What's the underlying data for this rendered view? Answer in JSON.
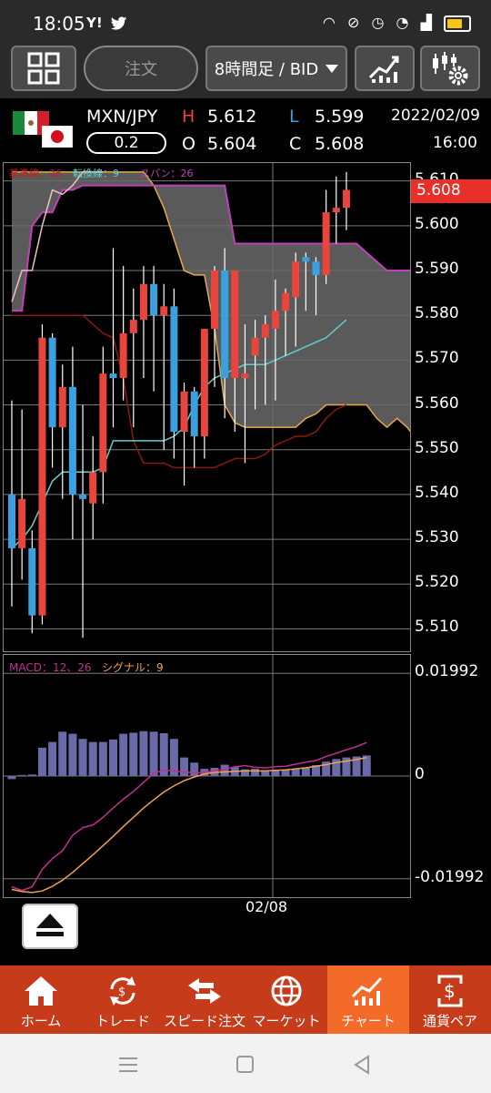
{
  "status_bar": {
    "time": "18:05",
    "left_icons": [
      "yahoo-icon",
      "twitter-icon"
    ],
    "right_icons": [
      "headphones-icon",
      "mute-icon",
      "alarm-icon",
      "wifi-icon",
      "signal-icon",
      "battery-icon"
    ],
    "battery_color": "#f5c518"
  },
  "toolbar": {
    "order_label": "注文",
    "timeframe_label": "8時間足 / BID"
  },
  "quote": {
    "pair": "MXN/JPY",
    "spread": "0.2",
    "high_label": "H",
    "high": "5.612",
    "low_label": "L",
    "low": "5.599",
    "open_label": "O",
    "open": "5.604",
    "close_label": "C",
    "close": "5.608",
    "date": "2022/02/09",
    "time": "16:00"
  },
  "main_chart": {
    "indicator_label_1": "基準線：26",
    "indicator_label_2": "転換線：9",
    "indicator_label_3": "スパン：26",
    "current_price": "5.608",
    "y_ticks": [
      "5.610",
      "5.600",
      "5.590",
      "5.580",
      "5.570",
      "5.560",
      "5.550",
      "5.540",
      "5.530",
      "5.520",
      "5.510"
    ],
    "x_date_label": "02/08"
  },
  "macd": {
    "label": "MACD：12、26",
    "signal_label": "シグナル：9",
    "y_ticks": [
      "0.01992",
      "0",
      "-0.01992"
    ]
  },
  "bottom_nav": [
    {
      "label": "ホーム",
      "icon": "home-icon"
    },
    {
      "label": "トレード",
      "icon": "trade-icon"
    },
    {
      "label": "スピード注文",
      "icon": "speed-order-icon"
    },
    {
      "label": "マーケット",
      "icon": "globe-icon"
    },
    {
      "label": "チャート",
      "icon": "chart-icon",
      "active": true
    },
    {
      "label": "通貨ペア",
      "icon": "currency-pair-icon"
    }
  ],
  "colors": {
    "up": "#e8453c",
    "down": "#3aa0e0",
    "kijun": "#8b1a10",
    "tenkan": "#5fd0d0",
    "span_a": "#e8a84a",
    "span_b": "#c040c0",
    "chikou": "#f0c0c0",
    "cloud": "#6a6a6a",
    "macd_bar": "#6a6aa8",
    "macd_line": "#c03090",
    "signal_line": "#f0a050",
    "nav_bg": "#c63c1a",
    "nav_active": "#f46a28"
  },
  "chart_data": {
    "type": "candlestick",
    "y_range": [
      5.505,
      5.614
    ],
    "candles": [
      {
        "o": 5.54,
        "h": 5.561,
        "l": 5.515,
        "c": 5.528
      },
      {
        "o": 5.528,
        "h": 5.559,
        "l": 5.521,
        "c": 5.539
      },
      {
        "o": 5.528,
        "h": 5.532,
        "l": 5.509,
        "c": 5.513
      },
      {
        "o": 5.513,
        "h": 5.578,
        "l": 5.511,
        "c": 5.575
      },
      {
        "o": 5.575,
        "h": 5.576,
        "l": 5.546,
        "c": 5.555
      },
      {
        "o": 5.555,
        "h": 5.569,
        "l": 5.539,
        "c": 5.564
      },
      {
        "o": 5.564,
        "h": 5.573,
        "l": 5.53,
        "c": 5.54
      },
      {
        "o": 5.54,
        "h": 5.56,
        "l": 5.508,
        "c": 5.539
      },
      {
        "o": 5.538,
        "h": 5.553,
        "l": 5.53,
        "c": 5.545
      },
      {
        "o": 5.545,
        "h": 5.573,
        "l": 5.538,
        "c": 5.567
      },
      {
        "o": 5.567,
        "h": 5.595,
        "l": 5.555,
        "c": 5.566
      },
      {
        "o": 5.566,
        "h": 5.591,
        "l": 5.561,
        "c": 5.576
      },
      {
        "o": 5.576,
        "h": 5.586,
        "l": 5.555,
        "c": 5.579
      },
      {
        "o": 5.579,
        "h": 5.591,
        "l": 5.566,
        "c": 5.587
      },
      {
        "o": 5.587,
        "h": 5.591,
        "l": 5.563,
        "c": 5.58
      },
      {
        "o": 5.58,
        "h": 5.587,
        "l": 5.55,
        "c": 5.582
      },
      {
        "o": 5.582,
        "h": 5.586,
        "l": 5.548,
        "c": 5.554
      },
      {
        "o": 5.554,
        "h": 5.565,
        "l": 5.542,
        "c": 5.563
      },
      {
        "o": 5.563,
        "h": 5.564,
        "l": 5.546,
        "c": 5.553
      },
      {
        "o": 5.553,
        "h": 5.577,
        "l": 5.548,
        "c": 5.577
      },
      {
        "o": 5.577,
        "h": 5.591,
        "l": 5.564,
        "c": 5.59
      },
      {
        "o": 5.59,
        "h": 5.595,
        "l": 5.557,
        "c": 5.566
      },
      {
        "o": 5.566,
        "h": 5.59,
        "l": 5.554,
        "c": 5.59
      },
      {
        "o": 5.566,
        "h": 5.578,
        "l": 5.547,
        "c": 5.567
      },
      {
        "o": 5.571,
        "h": 5.579,
        "l": 5.559,
        "c": 5.575
      },
      {
        "o": 5.575,
        "h": 5.58,
        "l": 5.56,
        "c": 5.578
      },
      {
        "o": 5.577,
        "h": 5.588,
        "l": 5.561,
        "c": 5.581
      },
      {
        "o": 5.581,
        "h": 5.586,
        "l": 5.571,
        "c": 5.585
      },
      {
        "o": 5.584,
        "h": 5.594,
        "l": 5.573,
        "c": 5.592
      },
      {
        "o": 5.593,
        "h": 5.594,
        "l": 5.581,
        "c": 5.592
      },
      {
        "o": 5.592,
        "h": 5.593,
        "l": 5.58,
        "c": 5.589
      },
      {
        "o": 5.589,
        "h": 5.608,
        "l": 5.587,
        "c": 5.603
      },
      {
        "o": 5.603,
        "h": 5.611,
        "l": 5.596,
        "c": 5.604
      },
      {
        "o": 5.604,
        "h": 5.612,
        "l": 5.599,
        "c": 5.608
      }
    ],
    "kijun": [
      5.58,
      5.58,
      5.58,
      5.58,
      5.58,
      5.58,
      5.58,
      5.58,
      5.578,
      5.576,
      5.575,
      5.566,
      5.552,
      5.547,
      5.547,
      5.547,
      5.546,
      5.546,
      5.546,
      5.546,
      5.546,
      5.547,
      5.548,
      5.548,
      5.548,
      5.549,
      5.551,
      5.552,
      5.553,
      5.553,
      5.554,
      5.557,
      5.559,
      5.56
    ],
    "tenkan": [
      5.528,
      5.53,
      5.533,
      5.538,
      5.543,
      5.545,
      5.545,
      5.545,
      5.545,
      5.546,
      5.552,
      5.552,
      5.552,
      5.552,
      5.552,
      5.552,
      5.553,
      5.555,
      5.56,
      5.564,
      5.566,
      5.567,
      5.568,
      5.569,
      5.569,
      5.569,
      5.57,
      5.571,
      5.572,
      5.573,
      5.574,
      5.575,
      5.577,
      5.579
    ],
    "span_a": [
      5.612,
      5.612,
      5.612,
      5.612,
      5.612,
      5.612,
      5.612,
      5.612,
      5.612,
      5.612,
      5.612,
      5.612,
      5.612,
      5.612,
      5.609,
      5.604,
      5.597,
      5.59,
      5.589,
      5.589,
      5.577,
      5.56,
      5.556,
      5.555,
      5.555,
      5.555,
      5.555,
      5.555,
      5.555,
      5.557,
      5.558,
      5.56,
      5.56,
      5.56,
      5.56,
      5.56,
      5.557,
      5.555,
      5.557,
      5.555,
      5.552,
      5.55,
      5.55
    ],
    "span_b": [
      5.581,
      5.581,
      5.6,
      5.603,
      5.603,
      5.608,
      5.608,
      5.609,
      5.609,
      5.609,
      5.609,
      5.609,
      5.609,
      5.609,
      5.609,
      5.609,
      5.609,
      5.609,
      5.609,
      5.609,
      5.609,
      5.609,
      5.596,
      5.596,
      5.596,
      5.596,
      5.596,
      5.596,
      5.596,
      5.596,
      5.596,
      5.596,
      5.596,
      5.596,
      5.596,
      5.594,
      5.592,
      5.59,
      5.59,
      5.59,
      5.59,
      5.59,
      5.59
    ],
    "chikou": [
      5.583,
      5.59,
      5.59,
      5.6,
      5.608,
      5.607,
      5.609,
      5.612,
      5.612,
      5.612
    ],
    "macd_hist": [
      -0.0006,
      0.0002,
      0.0003,
      0.0055,
      0.0066,
      0.0086,
      0.0082,
      0.0072,
      0.0066,
      0.0066,
      0.0071,
      0.0082,
      0.0084,
      0.0087,
      0.0086,
      0.0083,
      0.0072,
      0.0036,
      0.0026,
      0.0014,
      0.0016,
      0.0022,
      0.0018,
      0.0013,
      0.0014,
      0.0011,
      0.0012,
      0.0013,
      0.0014,
      0.0017,
      0.0021,
      0.0028,
      0.0033,
      0.0036,
      0.0038,
      0.004
    ],
    "macd_line": [
      -0.0215,
      -0.0222,
      -0.0215,
      -0.0181,
      -0.016,
      -0.0145,
      -0.0115,
      -0.01,
      -0.0095,
      -0.008,
      -0.0062,
      -0.0045,
      -0.003,
      -0.0012,
      0.0005,
      0.0012,
      0.001,
      0.0008,
      0.0006,
      0.0007,
      0.001,
      0.0013,
      0.0018,
      0.002,
      0.0017,
      0.0016,
      0.0018,
      0.0019,
      0.0023,
      0.0027,
      0.003,
      0.0038,
      0.0044,
      0.0051,
      0.0057,
      0.0065
    ],
    "signal_line": [
      -0.022,
      -0.0224,
      -0.0226,
      -0.0223,
      -0.0214,
      -0.0202,
      -0.0187,
      -0.017,
      -0.0153,
      -0.0135,
      -0.0117,
      -0.0098,
      -0.008,
      -0.0062,
      -0.0046,
      -0.0031,
      -0.0019,
      -0.0009,
      -0.0002,
      0.0004,
      0.0007,
      0.0008,
      0.0009,
      0.001,
      0.001,
      0.001,
      0.0011,
      0.0012,
      0.0014,
      0.0016,
      0.0019,
      0.0022,
      0.0026,
      0.0029,
      0.0032,
      0.0036
    ]
  }
}
